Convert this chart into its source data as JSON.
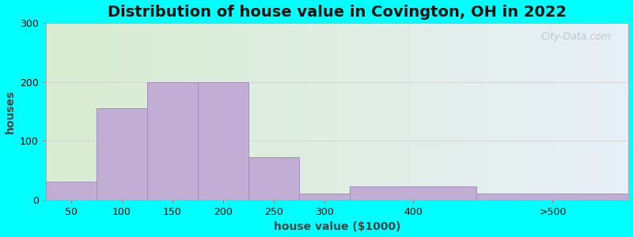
{
  "title": "Distribution of house value in Covington, OH in 2022",
  "xlabel": "house value ($1000)",
  "ylabel": "houses",
  "bin_edges": [
    25,
    75,
    125,
    175,
    225,
    275,
    325,
    450,
    600
  ],
  "tick_labels": [
    "50",
    "100",
    "150",
    "200",
    "250",
    "300",
    "400",
    ">500"
  ],
  "bar_heights": [
    30,
    155,
    200,
    200,
    72,
    10,
    22,
    10
  ],
  "bar_color": "#c2aed4",
  "bar_edge_color": "#a090b8",
  "ylim": [
    0,
    300
  ],
  "yticks": [
    0,
    100,
    200,
    300
  ],
  "outer_bg_color": "#00FFFF",
  "grad_left": "#d8ecd0",
  "grad_right": "#e8f0f8",
  "title_fontsize": 14,
  "axis_label_fontsize": 10,
  "tick_fontsize": 9,
  "watermark_text": "City-Data.com",
  "watermark_color": "#b0bec5"
}
